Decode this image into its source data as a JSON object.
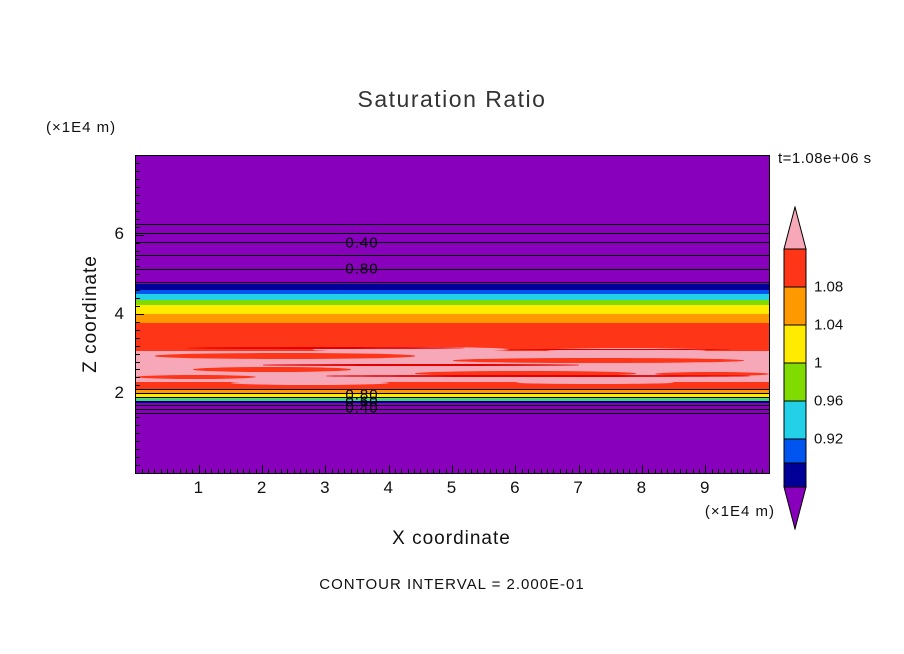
{
  "title": "Saturation Ratio",
  "time_label": "t=1.08e+06 s",
  "contour_note": "CONTOUR INTERVAL = 2.000E-01",
  "axes": {
    "xlabel": "X coordinate",
    "ylabel": "Z coordinate",
    "x_units": "(×1E4 m)",
    "y_units": "(×1E4 m)"
  },
  "chart_data": {
    "type": "filled-contour",
    "title": "Saturation Ratio",
    "xlabel": "X coordinate",
    "ylabel": "Z coordinate",
    "x_range": [
      0,
      10
    ],
    "y_range": [
      0,
      8
    ],
    "x_ticks": [
      1,
      2,
      3,
      4,
      5,
      6,
      7,
      8,
      9
    ],
    "y_ticks": [
      2,
      4,
      6
    ],
    "x_minor_step": 0.1,
    "y_minor_step": 0.2,
    "contour_interval": "2.000E-01",
    "time": "t=1.08e+06 s",
    "colors": {
      "purple": "#8800BB",
      "navy": "#000099",
      "blue": "#0055F0",
      "cyan": "#22D0E8",
      "green": "#7FDB00",
      "yellow": "#FFEB00",
      "orange": "#FF9900",
      "red": "#FF3518",
      "salmon": "#F7A8B8",
      "crimson": "#E00000",
      "pink": "#F7A8B8"
    },
    "bands": [
      {
        "z_top": 8.0,
        "z_bottom": 4.77,
        "color": "purple"
      },
      {
        "z_top": 4.77,
        "z_bottom": 4.62,
        "color": "navy"
      },
      {
        "z_top": 4.62,
        "z_bottom": 4.52,
        "color": "blue"
      },
      {
        "z_top": 4.52,
        "z_bottom": 4.37,
        "color": "cyan"
      },
      {
        "z_top": 4.37,
        "z_bottom": 4.24,
        "color": "green"
      },
      {
        "z_top": 4.24,
        "z_bottom": 4.02,
        "color": "yellow"
      },
      {
        "z_top": 4.02,
        "z_bottom": 3.79,
        "color": "orange"
      },
      {
        "z_top": 3.79,
        "z_bottom": 2.1,
        "color": "red"
      },
      {
        "z_top": 2.1,
        "z_bottom": 2.0,
        "color": "orange"
      },
      {
        "z_top": 2.0,
        "z_bottom": 1.92,
        "color": "yellow"
      },
      {
        "z_top": 1.92,
        "z_bottom": 1.87,
        "color": "green"
      },
      {
        "z_top": 1.87,
        "z_bottom": 1.82,
        "color": "cyan"
      },
      {
        "z_top": 1.82,
        "z_bottom": 1.77,
        "color": "navy"
      },
      {
        "z_top": 1.77,
        "z_bottom": 0.0,
        "color": "purple"
      }
    ],
    "salmon_zone": {
      "z_top": 3.08,
      "z_bottom": 2.3,
      "color": "salmon"
    },
    "streaks": [
      {
        "x0": 0.3,
        "x1": 4.4,
        "z": 2.95,
        "h": 0.14,
        "color": "red"
      },
      {
        "x0": 5.0,
        "x1": 9.6,
        "z": 2.83,
        "h": 0.12,
        "color": "red"
      },
      {
        "x0": 0.9,
        "x1": 3.4,
        "z": 2.62,
        "h": 0.12,
        "color": "red"
      },
      {
        "x0": 4.4,
        "x1": 7.9,
        "z": 2.52,
        "h": 0.12,
        "color": "red"
      },
      {
        "x0": 0.0,
        "x1": 1.9,
        "z": 2.42,
        "h": 0.1,
        "color": "red"
      },
      {
        "x0": 8.2,
        "x1": 10.0,
        "z": 2.5,
        "h": 0.1,
        "color": "red"
      },
      {
        "x0": 2.8,
        "x1": 5.9,
        "z": 3.12,
        "h": 0.12,
        "color": "salmon"
      },
      {
        "x0": 6.5,
        "x1": 9.0,
        "z": 3.1,
        "h": 0.1,
        "color": "salmon"
      },
      {
        "x0": 1.5,
        "x1": 4.0,
        "z": 2.26,
        "h": 0.1,
        "color": "salmon"
      },
      {
        "x0": 6.0,
        "x1": 8.5,
        "z": 2.28,
        "h": 0.08,
        "color": "salmon"
      },
      {
        "x0": 0.8,
        "x1": 5.2,
        "z": 3.16,
        "h": 0.05,
        "color": "crimson"
      },
      {
        "x0": 5.8,
        "x1": 9.4,
        "z": 3.12,
        "h": 0.04,
        "color": "crimson"
      },
      {
        "x0": 2.0,
        "x1": 7.0,
        "z": 2.72,
        "h": 0.04,
        "color": "crimson"
      },
      {
        "x0": 3.0,
        "x1": 9.7,
        "z": 2.45,
        "h": 0.04,
        "color": "crimson"
      }
    ],
    "contour_lines": [
      {
        "z": 6.28
      },
      {
        "z": 6.06
      },
      {
        "z": 5.83
      },
      {
        "z": 5.51
      },
      {
        "z": 5.14
      },
      {
        "z": 4.82
      },
      {
        "z": 2.12
      },
      {
        "z": 2.02
      },
      {
        "z": 1.92
      },
      {
        "z": 1.82
      },
      {
        "z": 1.71
      },
      {
        "z": 1.62
      },
      {
        "z": 1.51
      }
    ],
    "contour_labels": [
      {
        "text": "0.40",
        "x": 3.57,
        "z": 5.8
      },
      {
        "text": "0.80",
        "x": 3.57,
        "z": 5.16
      },
      {
        "text": "0.80",
        "x": 3.57,
        "z": 1.97
      },
      {
        "text": "0.60",
        "x": 3.57,
        "z": 1.8
      },
      {
        "text": "0.40",
        "x": 3.57,
        "z": 1.64
      }
    ],
    "colorbar": {
      "arrow_top": {
        "color": "pink",
        "h": 42
      },
      "arrow_bottom": {
        "color": "purple",
        "h": 42
      },
      "segments": [
        {
          "color": "red",
          "h": 38
        },
        {
          "color": "orange",
          "h": 38
        },
        {
          "color": "yellow",
          "h": 38
        },
        {
          "color": "green",
          "h": 38
        },
        {
          "color": "cyan",
          "h": 38
        },
        {
          "color": "blue",
          "h": 24
        },
        {
          "color": "navy",
          "h": 24
        }
      ],
      "labels": [
        {
          "text": "1.08",
          "after_segment": 0
        },
        {
          "text": "1.04",
          "after_segment": 1
        },
        {
          "text": "1",
          "after_segment": 2
        },
        {
          "text": "0.96",
          "after_segment": 3
        },
        {
          "text": "0.92",
          "after_segment": 4
        }
      ]
    }
  }
}
